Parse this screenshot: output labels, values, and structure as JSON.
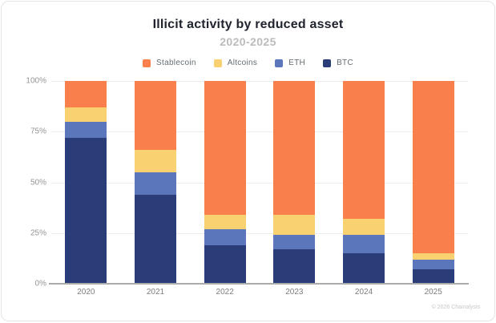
{
  "card": {
    "title": "Illicit activity by reduced asset",
    "subtitle": "2020-2025",
    "footer": "© 2026 Chainalysis"
  },
  "colors": {
    "stablecoin": "#F9804C",
    "altcoins": "#FAD171",
    "eth": "#5B76BB",
    "btc": "#2B3D79",
    "grid": "#EDEDED",
    "axis": "#ABABAB",
    "tick_text": "#949494",
    "xlabel_text": "#7E7E7E",
    "title_text": "#20242E",
    "subtitle_text": "#BCBCBC",
    "legend_text": "#636D73"
  },
  "chart_data": {
    "type": "bar",
    "stacked": true,
    "title": "Illicit activity by reduced asset",
    "subtitle": "2020-2025",
    "categories": [
      "2020",
      "2021",
      "2022",
      "2023",
      "2024",
      "2025"
    ],
    "series": [
      {
        "name": "Stablecoin",
        "color": "#F9804C",
        "values": [
          13,
          34,
          66,
          66,
          68,
          85
        ]
      },
      {
        "name": "Altcoins",
        "color": "#FAD171",
        "values": [
          7,
          11,
          7,
          10,
          8,
          3
        ]
      },
      {
        "name": "ETH",
        "color": "#5B76BB",
        "values": [
          8,
          11,
          8,
          7,
          9,
          5
        ]
      },
      {
        "name": "BTC",
        "color": "#2B3D79",
        "values": [
          72,
          44,
          19,
          17,
          15,
          7
        ]
      }
    ],
    "stack_order_top_to_bottom": [
      "Stablecoin",
      "Altcoins",
      "ETH",
      "BTC"
    ],
    "y_ticks": [
      "0%",
      "25%",
      "50%",
      "75%",
      "100%"
    ],
    "y_tick_values": [
      0,
      25,
      50,
      75,
      100
    ],
    "ylim": [
      0,
      100
    ],
    "unit": "percent",
    "grid": true,
    "legend_position": "top"
  }
}
